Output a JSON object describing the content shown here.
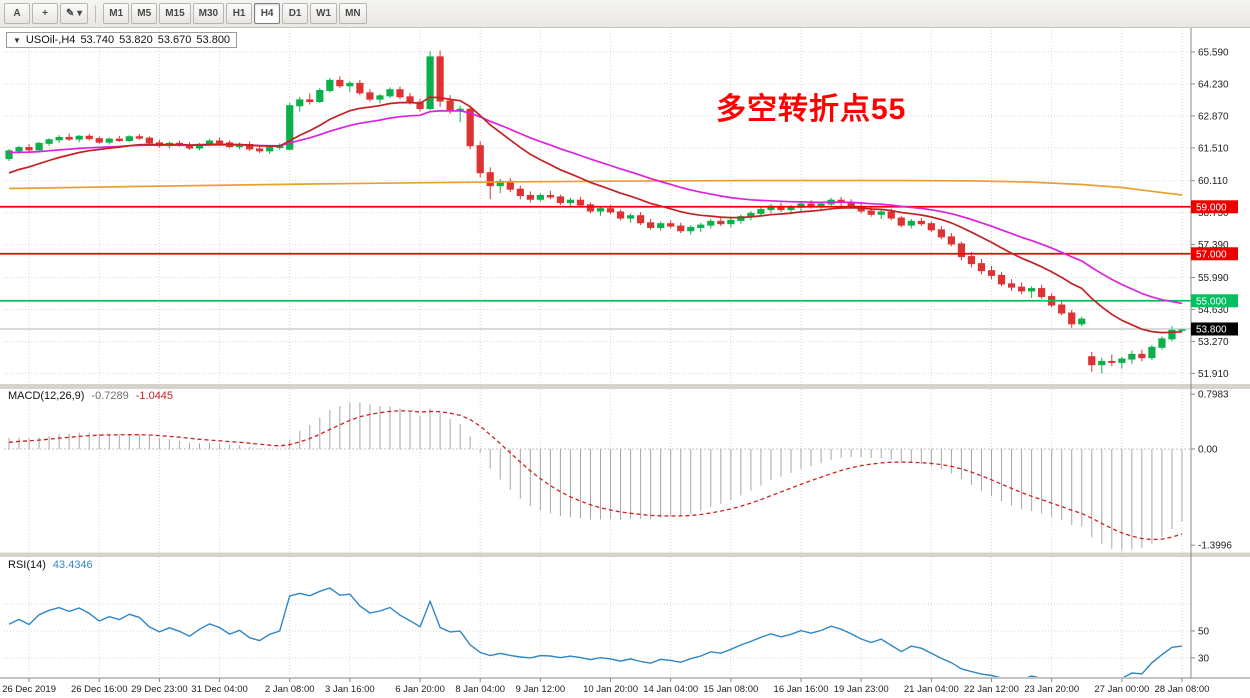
{
  "toolbar": {
    "left_buttons": [
      {
        "name": "cursor-button",
        "label": "A"
      },
      {
        "name": "crosshair-button",
        "label": "+"
      },
      {
        "name": "draw-tools-dropdown",
        "label": "✎ ▾"
      }
    ],
    "timeframes": [
      "M1",
      "M5",
      "M15",
      "M30",
      "H1",
      "H4",
      "D1",
      "W1",
      "MN"
    ],
    "active_timeframe": "H4"
  },
  "main_chart": {
    "collapse_arrow": "▼",
    "title": {
      "symbol_tf": "USOil-,H4",
      "open": "53.740",
      "high": "53.820",
      "low": "53.670",
      "close": "53.800"
    },
    "annotation": {
      "text": "多空转折点55",
      "color": "#FF0000"
    },
    "price_axis_labels": [
      65.59,
      64.23,
      62.87,
      61.51,
      60.11,
      58.75,
      57.39,
      55.99,
      54.63,
      53.27,
      51.91
    ],
    "hlines": [
      {
        "price": 59.0,
        "label": "59.000",
        "color": "#EE0000"
      },
      {
        "price": 57.0,
        "label": "57.000",
        "color": "#EE0000"
      },
      {
        "price": 55.0,
        "label": "55.000",
        "color": "#00C060"
      }
    ],
    "current_price": {
      "price": 53.8,
      "label": "53.800",
      "badge_color": "#000000",
      "line_color": "#B4B4B4"
    }
  },
  "macd_panel": {
    "label": "MACD(12,26,9)",
    "value_main": "-0.7289",
    "value_signal": "-1.0445",
    "params": {
      "fast": 12,
      "slow": 26,
      "signal": 9
    },
    "axis_labels": [
      {
        "value": 0.7983,
        "label": "0.7983"
      },
      {
        "value": 0,
        "label": "0.00"
      },
      {
        "value": -1.3996,
        "label": "-1.3996"
      }
    ],
    "colors": {
      "histogram": "#A6A6A6",
      "signal": "#D02020"
    }
  },
  "rsi_panel": {
    "label": "RSI(14)",
    "value": "43.4346",
    "period": 14,
    "levels": [
      70,
      50,
      30
    ],
    "axis_labels": [
      {
        "value": 50,
        "label": "50"
      },
      {
        "value": 30,
        "label": "30"
      }
    ],
    "color": "#2E86C8"
  },
  "time_axis": [
    {
      "label": "26 Dec 2019",
      "i": 2
    },
    {
      "label": "26 Dec 16:00",
      "i": 9
    },
    {
      "label": "29 Dec 23:00",
      "i": 15
    },
    {
      "label": "31 Dec 04:00",
      "i": 21
    },
    {
      "label": "2 Jan 08:00",
      "i": 28
    },
    {
      "label": "3 Jan 16:00",
      "i": 34
    },
    {
      "label": "6 Jan 20:00",
      "i": 41
    },
    {
      "label": "8 Jan 04:00",
      "i": 47
    },
    {
      "label": "9 Jan 12:00",
      "i": 53
    },
    {
      "label": "10 Jan 20:00",
      "i": 60
    },
    {
      "label": "14 Jan 04:00",
      "i": 66
    },
    {
      "label": "15 Jan 08:00",
      "i": 72
    },
    {
      "label": "16 Jan 16:00",
      "i": 79
    },
    {
      "label": "19 Jan 23:00",
      "i": 85
    },
    {
      "label": "21 Jan 04:00",
      "i": 92
    },
    {
      "label": "22 Jan 12:00",
      "i": 98
    },
    {
      "label": "23 Jan 20:00",
      "i": 104
    },
    {
      "label": "27 Jan 00:00",
      "i": 111
    },
    {
      "label": "28 Jan 08:00",
      "i": 117
    }
  ],
  "chart_data": {
    "type": "candlestick",
    "symbol": "USOil-",
    "timeframe": "H4",
    "candle_colors": {
      "bull": "#0CB04A",
      "bear": "#DD3333"
    },
    "ohlc": [
      [
        61.05,
        61.45,
        60.95,
        61.38
      ],
      [
        61.38,
        61.6,
        61.25,
        61.52
      ],
      [
        61.52,
        61.68,
        61.35,
        61.42
      ],
      [
        61.42,
        61.75,
        61.38,
        61.7
      ],
      [
        61.7,
        61.92,
        61.6,
        61.85
      ],
      [
        61.85,
        62.05,
        61.72,
        61.95
      ],
      [
        61.95,
        62.12,
        61.8,
        61.88
      ],
      [
        61.88,
        62.05,
        61.75,
        62.0
      ],
      [
        62.0,
        62.1,
        61.82,
        61.9
      ],
      [
        61.9,
        62.0,
        61.68,
        61.75
      ],
      [
        61.75,
        61.95,
        61.65,
        61.88
      ],
      [
        61.88,
        62.02,
        61.76,
        61.82
      ],
      [
        61.82,
        62.05,
        61.75,
        61.98
      ],
      [
        61.98,
        62.1,
        61.85,
        61.92
      ],
      [
        61.92,
        62.0,
        61.65,
        61.72
      ],
      [
        61.72,
        61.85,
        61.52,
        61.6
      ],
      [
        61.6,
        61.78,
        61.48,
        61.7
      ],
      [
        61.7,
        61.82,
        61.55,
        61.62
      ],
      [
        61.62,
        61.75,
        61.42,
        61.5
      ],
      [
        61.5,
        61.72,
        61.4,
        61.66
      ],
      [
        61.66,
        61.88,
        61.58,
        61.8
      ],
      [
        61.8,
        61.95,
        61.65,
        61.72
      ],
      [
        61.72,
        61.82,
        61.48,
        61.56
      ],
      [
        61.56,
        61.74,
        61.44,
        61.65
      ],
      [
        61.65,
        61.78,
        61.38,
        61.46
      ],
      [
        61.46,
        61.62,
        61.28,
        61.38
      ],
      [
        61.38,
        61.58,
        61.25,
        61.52
      ],
      [
        61.52,
        61.7,
        61.42,
        61.6
      ],
      [
        61.45,
        63.42,
        61.4,
        63.3
      ],
      [
        63.3,
        63.68,
        63.05,
        63.55
      ],
      [
        63.55,
        63.82,
        63.35,
        63.48
      ],
      [
        63.48,
        64.05,
        63.42,
        63.95
      ],
      [
        63.95,
        64.48,
        63.85,
        64.38
      ],
      [
        64.38,
        64.55,
        64.05,
        64.15
      ],
      [
        64.15,
        64.35,
        63.88,
        64.25
      ],
      [
        64.25,
        64.4,
        63.75,
        63.85
      ],
      [
        63.85,
        64.0,
        63.48,
        63.58
      ],
      [
        63.58,
        63.8,
        63.4,
        63.72
      ],
      [
        63.72,
        64.08,
        63.62,
        63.98
      ],
      [
        63.98,
        64.12,
        63.58,
        63.68
      ],
      [
        63.68,
        63.85,
        63.35,
        63.45
      ],
      [
        63.45,
        63.6,
        63.05,
        63.18
      ],
      [
        63.18,
        65.62,
        63.12,
        65.38
      ],
      [
        65.38,
        65.65,
        63.25,
        63.5
      ],
      [
        63.5,
        63.75,
        62.95,
        63.08
      ],
      [
        63.08,
        63.3,
        62.6,
        63.15
      ],
      [
        63.15,
        63.25,
        61.45,
        61.6
      ],
      [
        61.6,
        61.78,
        60.25,
        60.45
      ],
      [
        60.45,
        60.68,
        59.32,
        59.9
      ],
      [
        59.9,
        60.18,
        59.58,
        60.08
      ],
      [
        60.08,
        60.22,
        59.62,
        59.75
      ],
      [
        59.75,
        59.9,
        59.32,
        59.48
      ],
      [
        59.48,
        59.65,
        59.18,
        59.32
      ],
      [
        59.32,
        59.58,
        59.22,
        59.48
      ],
      [
        59.48,
        59.68,
        59.32,
        59.42
      ],
      [
        59.42,
        59.52,
        59.08,
        59.18
      ],
      [
        59.18,
        59.38,
        58.98,
        59.28
      ],
      [
        59.28,
        59.42,
        58.98,
        59.08
      ],
      [
        59.08,
        59.18,
        58.72,
        58.82
      ],
      [
        58.82,
        59.02,
        58.62,
        58.92
      ],
      [
        58.92,
        59.08,
        58.68,
        58.78
      ],
      [
        58.78,
        58.88,
        58.42,
        58.52
      ],
      [
        58.52,
        58.72,
        58.32,
        58.62
      ],
      [
        58.62,
        58.78,
        58.22,
        58.32
      ],
      [
        58.32,
        58.48,
        58.02,
        58.12
      ],
      [
        58.12,
        58.38,
        57.98,
        58.28
      ],
      [
        58.28,
        58.42,
        58.08,
        58.18
      ],
      [
        58.18,
        58.32,
        57.88,
        57.98
      ],
      [
        57.98,
        58.22,
        57.82,
        58.12
      ],
      [
        58.12,
        58.32,
        57.92,
        58.22
      ],
      [
        58.22,
        58.48,
        58.08,
        58.38
      ],
      [
        58.38,
        58.58,
        58.18,
        58.28
      ],
      [
        58.28,
        58.52,
        58.12,
        58.42
      ],
      [
        58.42,
        58.68,
        58.28,
        58.58
      ],
      [
        58.58,
        58.82,
        58.42,
        58.72
      ],
      [
        58.72,
        58.98,
        58.58,
        58.88
      ],
      [
        58.88,
        59.12,
        58.72,
        59.02
      ],
      [
        59.02,
        59.18,
        58.78,
        58.88
      ],
      [
        58.88,
        59.08,
        58.68,
        58.98
      ],
      [
        58.98,
        59.22,
        58.82,
        59.12
      ],
      [
        59.12,
        59.28,
        58.92,
        59.02
      ],
      [
        59.02,
        59.22,
        58.82,
        59.12
      ],
      [
        59.12,
        59.38,
        58.98,
        59.28
      ],
      [
        59.28,
        59.42,
        59.02,
        59.18
      ],
      [
        59.18,
        59.32,
        58.92,
        59.02
      ],
      [
        59.02,
        59.18,
        58.72,
        58.82
      ],
      [
        58.82,
        58.98,
        58.58,
        58.68
      ],
      [
        58.68,
        58.88,
        58.48,
        58.78
      ],
      [
        58.78,
        58.92,
        58.42,
        58.52
      ],
      [
        58.52,
        58.62,
        58.12,
        58.22
      ],
      [
        58.22,
        58.48,
        58.08,
        58.38
      ],
      [
        58.38,
        58.52,
        58.18,
        58.28
      ],
      [
        58.28,
        58.38,
        57.92,
        58.02
      ],
      [
        58.02,
        58.18,
        57.62,
        57.72
      ],
      [
        57.72,
        57.88,
        57.32,
        57.42
      ],
      [
        57.42,
        57.52,
        56.72,
        56.88
      ],
      [
        56.88,
        57.08,
        56.42,
        56.58
      ],
      [
        56.58,
        56.78,
        56.12,
        56.28
      ],
      [
        56.28,
        56.48,
        55.92,
        56.08
      ],
      [
        56.08,
        56.22,
        55.62,
        55.72
      ],
      [
        55.72,
        55.92,
        55.42,
        55.58
      ],
      [
        55.58,
        55.78,
        55.28,
        55.42
      ],
      [
        55.42,
        55.62,
        55.12,
        55.52
      ],
      [
        55.52,
        55.68,
        55.08,
        55.18
      ],
      [
        55.18,
        55.32,
        54.72,
        54.82
      ],
      [
        54.82,
        54.98,
        54.38,
        54.48
      ],
      [
        54.48,
        54.62,
        53.85,
        54.02
      ],
      [
        54.02,
        54.32,
        53.92,
        54.22
      ],
      [
        52.62,
        52.82,
        51.98,
        52.28
      ],
      [
        52.28,
        52.58,
        51.91,
        52.42
      ],
      [
        52.42,
        52.72,
        52.22,
        52.38
      ],
      [
        52.38,
        52.62,
        52.12,
        52.52
      ],
      [
        52.52,
        52.88,
        52.32,
        52.72
      ],
      [
        52.72,
        52.92,
        52.42,
        52.58
      ],
      [
        52.58,
        53.12,
        52.48,
        53.02
      ],
      [
        53.02,
        53.48,
        52.92,
        53.38
      ],
      [
        53.38,
        53.92,
        53.28,
        53.74
      ],
      [
        53.74,
        53.82,
        53.67,
        53.8
      ]
    ],
    "moving_averages": [
      {
        "name": "ma-slow-orange",
        "color": "#E8A030",
        "points": [
          [
            0,
            59.78
          ],
          [
            15,
            59.88
          ],
          [
            30,
            59.97
          ],
          [
            45,
            60.04
          ],
          [
            60,
            60.09
          ],
          [
            75,
            60.12
          ],
          [
            88,
            60.12
          ],
          [
            96,
            60.1
          ],
          [
            102,
            60.05
          ],
          [
            107,
            59.95
          ],
          [
            111,
            59.82
          ],
          [
            114,
            59.66
          ],
          [
            117,
            59.5
          ]
        ]
      },
      {
        "name": "ma-mid-magenta",
        "method": "ema",
        "period": 30,
        "seed": 61.3,
        "color": "#DD22DD"
      },
      {
        "name": "ma-fast-red",
        "method": "ema",
        "period": 14,
        "seed": 60.3,
        "color": "#C42222"
      }
    ]
  }
}
